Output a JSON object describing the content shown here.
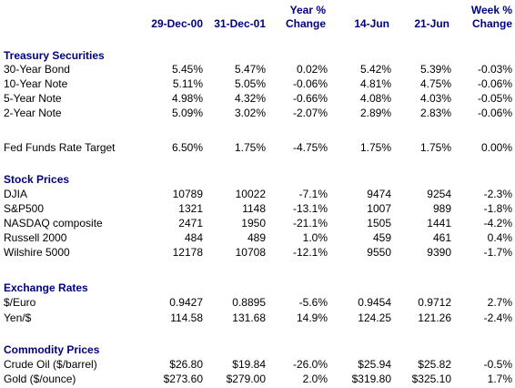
{
  "columns": {
    "col1": [
      "29-Dec-00"
    ],
    "col2": [
      "31-Dec-01"
    ],
    "col3": [
      "Year %",
      "Change"
    ],
    "col4": [
      "14-Jun"
    ],
    "col5": [
      "21-Jun"
    ],
    "col6": [
      "Week %",
      "Change"
    ]
  },
  "sections": {
    "treasury": {
      "title": "Treasury Securities",
      "rows": [
        {
          "label": "30-Year Bond",
          "values": [
            "5.45%",
            "5.47%",
            "0.02%",
            "5.42%",
            "5.39%",
            "-0.03%"
          ]
        },
        {
          "label": "10-Year Note",
          "values": [
            "5.11%",
            "5.05%",
            "-0.06%",
            "4.81%",
            "4.75%",
            "-0.06%"
          ]
        },
        {
          "label": "5-Year Note",
          "values": [
            "4.98%",
            "4.32%",
            "-0.66%",
            "4.08%",
            "4.03%",
            "-0.05%"
          ]
        },
        {
          "label": "2-Year Note",
          "values": [
            "5.09%",
            "3.02%",
            "-2.07%",
            "2.89%",
            "2.83%",
            "-0.06%"
          ]
        }
      ]
    },
    "fed": {
      "rows": [
        {
          "label": "Fed Funds Rate Target",
          "values": [
            "6.50%",
            "1.75%",
            "-4.75%",
            "1.75%",
            "1.75%",
            "0.00%"
          ]
        }
      ]
    },
    "stocks": {
      "title": "Stock Prices",
      "rows": [
        {
          "label": "DJIA",
          "values": [
            "10789",
            "10022",
            "-7.1%",
            "9474",
            "9254",
            "-2.3%"
          ]
        },
        {
          "label": "S&P500",
          "values": [
            "1321",
            "1148",
            "-13.1%",
            "1007",
            "989",
            "-1.8%"
          ]
        },
        {
          "label": "NASDAQ composite",
          "values": [
            "2471",
            "1950",
            "-21.1%",
            "1505",
            "1441",
            "-4.2%"
          ]
        },
        {
          "label": "Russell 2000",
          "values": [
            "484",
            "489",
            "1.0%",
            "459",
            "461",
            "0.4%"
          ]
        },
        {
          "label": "Wilshire 5000",
          "values": [
            "12178",
            "10708",
            "-12.1%",
            "9550",
            "9390",
            "-1.7%"
          ]
        }
      ]
    },
    "exchange": {
      "title": "Exchange Rates",
      "rows": [
        {
          "label": "$/Euro",
          "values": [
            "0.9427",
            "0.8895",
            "-5.6%",
            "0.9454",
            "0.9712",
            "2.7%"
          ]
        },
        {
          "label": "Yen/$",
          "values": [
            "114.58",
            "131.68",
            "14.9%",
            "124.25",
            "121.26",
            "-2.4%"
          ]
        }
      ]
    },
    "commodity": {
      "title": "Commodity Prices",
      "rows": [
        {
          "label": "Crude Oil ($/barrel)",
          "values": [
            "$26.80",
            "$19.84",
            "-26.0%",
            "$25.94",
            "$25.82",
            "-0.5%"
          ]
        },
        {
          "label": "Gold ($/ounce)",
          "values": [
            "$273.60",
            "$279.00",
            "2.0%",
            "$319.80",
            "$325.10",
            "1.7%"
          ]
        }
      ]
    }
  }
}
